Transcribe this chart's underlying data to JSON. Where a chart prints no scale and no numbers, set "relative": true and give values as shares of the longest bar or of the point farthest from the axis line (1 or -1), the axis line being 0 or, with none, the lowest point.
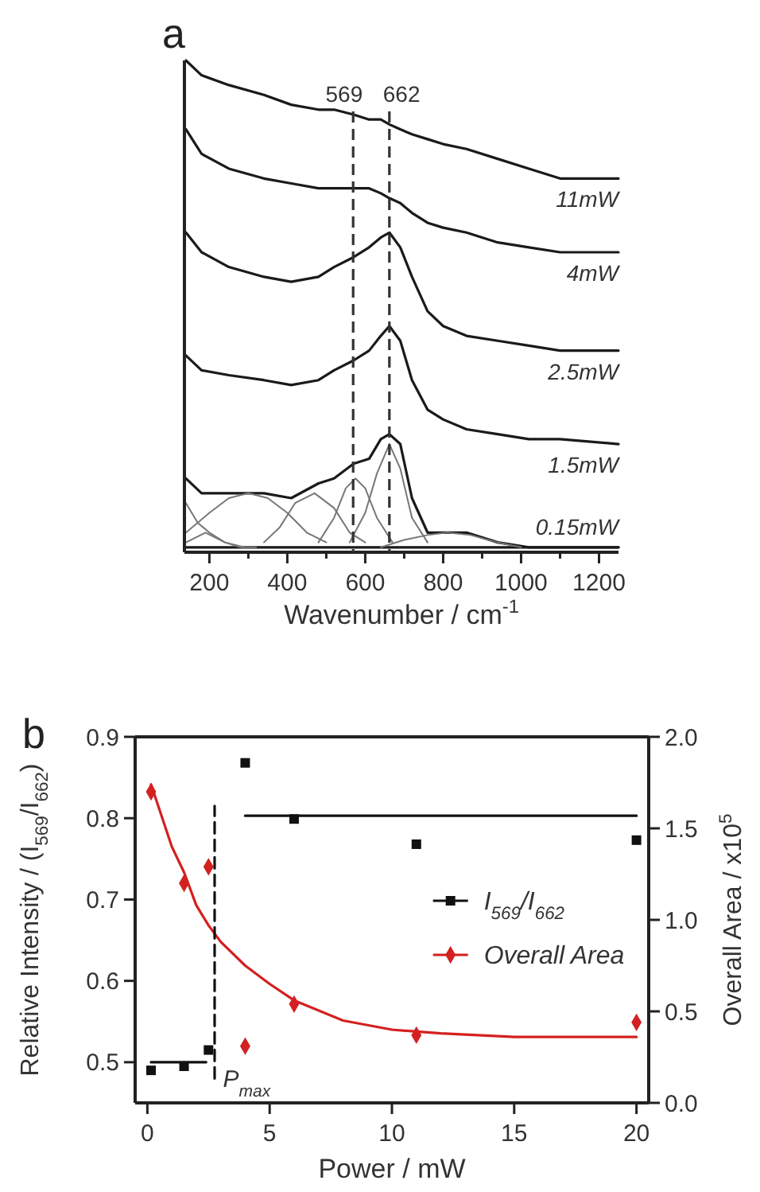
{
  "chart_data": [
    {
      "type": "line",
      "title": "a",
      "xlabel": "Wavenumber / cm$^{-1}$",
      "relative": true,
      "xlim": [
        136,
        1250
      ],
      "xticks": [
        200,
        {
          "value": 300,
          "label": null
        },
        400,
        {
          "value": 500,
          "label": null
        },
        600,
        {
          "value": 700,
          "label": null
        },
        800,
        {
          "value": 900,
          "label": null
        },
        1000,
        {
          "value": 1100,
          "label": null
        },
        1200
      ],
      "x": [
        140,
        180,
        250,
        340,
        410,
        480,
        520,
        570,
        610,
        640,
        662,
        690,
        720,
        760,
        800,
        860,
        940,
        1020,
        1100,
        1250
      ],
      "ref_lines": [
        {
          "axis": "x",
          "value": 569,
          "label": "569",
          "line_style": "dashed",
          "color": "#333333"
        },
        {
          "axis": "x",
          "value": 662,
          "label": "662",
          "line_style": "dashed",
          "color": "#333333"
        }
      ],
      "series": [
        {
          "name": "11mW",
          "color": "#1a1a1a",
          "values": [
            1.0,
            0.97,
            0.95,
            0.93,
            0.91,
            0.9,
            0.9,
            0.89,
            0.88,
            0.88,
            0.87,
            0.86,
            0.85,
            0.84,
            0.83,
            0.82,
            0.8,
            0.78,
            0.76,
            0.76
          ]
        },
        {
          "name": "4mW",
          "color": "#1a1a1a",
          "values": [
            0.86,
            0.81,
            0.78,
            0.76,
            0.75,
            0.74,
            0.74,
            0.74,
            0.74,
            0.73,
            0.72,
            0.71,
            0.69,
            0.67,
            0.66,
            0.65,
            0.63,
            0.62,
            0.61,
            0.61
          ]
        },
        {
          "name": "2.5mW",
          "color": "#1a1a1a",
          "values": [
            0.65,
            0.61,
            0.58,
            0.56,
            0.55,
            0.56,
            0.58,
            0.6,
            0.62,
            0.64,
            0.65,
            0.62,
            0.56,
            0.49,
            0.46,
            0.44,
            0.43,
            0.42,
            0.41,
            0.41
          ]
        },
        {
          "name": "1.5mW",
          "color": "#1a1a1a",
          "values": [
            0.4,
            0.37,
            0.36,
            0.35,
            0.34,
            0.35,
            0.37,
            0.39,
            0.41,
            0.44,
            0.46,
            0.43,
            0.35,
            0.29,
            0.27,
            0.25,
            0.24,
            0.23,
            0.23,
            0.22
          ]
        },
        {
          "name": "0.15mW",
          "color": "#1a1a1a",
          "values": [
            0.15,
            0.12,
            0.12,
            0.12,
            0.11,
            0.14,
            0.15,
            0.18,
            0.19,
            0.23,
            0.24,
            0.22,
            0.11,
            0.04,
            0.04,
            0.04,
            0.02,
            0.01,
            0.01,
            0.01
          ]
        },
        {
          "color": "#1a1a1a",
          "x": [
            140,
            1250
          ],
          "values": [
            0.01,
            0.01
          ]
        },
        {
          "color": "#777777",
          "x": [
            140,
            200,
            250,
            300,
            350,
            400,
            450,
            500
          ],
          "values": [
            0.04,
            0.08,
            0.11,
            0.12,
            0.11,
            0.08,
            0.04,
            0.02
          ]
        },
        {
          "color": "#777777",
          "x": [
            340,
            380,
            420,
            470,
            520,
            560,
            600
          ],
          "values": [
            0.02,
            0.05,
            0.1,
            0.12,
            0.09,
            0.04,
            0.02
          ]
        },
        {
          "color": "#777777",
          "x": [
            480,
            520,
            550,
            575,
            600,
            630,
            670
          ],
          "values": [
            0.02,
            0.07,
            0.13,
            0.15,
            0.13,
            0.07,
            0.02
          ]
        },
        {
          "color": "#777777",
          "x": [
            560,
            600,
            630,
            662,
            690,
            720,
            760
          ],
          "values": [
            0.02,
            0.08,
            0.16,
            0.22,
            0.17,
            0.07,
            0.02
          ]
        },
        {
          "color": "#777777",
          "x": [
            640,
            700,
            760,
            810,
            870,
            940,
            1000
          ],
          "values": [
            0.01,
            0.025,
            0.035,
            0.04,
            0.035,
            0.02,
            0.01
          ]
        },
        {
          "color": "#777777",
          "x": [
            140,
            170,
            200,
            240,
            280,
            320
          ],
          "values": [
            0.1,
            0.06,
            0.04,
            0.02,
            0.01,
            0.01
          ]
        },
        {
          "color": "#777777",
          "x": [
            140,
            190,
            240,
            290
          ],
          "values": [
            0.02,
            0.04,
            0.02,
            0.01
          ]
        }
      ]
    },
    {
      "type": "scatter",
      "title": "b",
      "xlabel": "Power / mW",
      "ylabel": "Relative Intensity / (I$_{569}$/I$_{662}$)",
      "y2label": "Overall Area / x10$^{5}$",
      "xlim": [
        -0.5,
        20.5
      ],
      "xticks": [
        0,
        5,
        10,
        15,
        20
      ],
      "ylim": [
        0.45,
        0.9
      ],
      "yticks": [
        0.5,
        0.6,
        0.7,
        0.8,
        0.9
      ],
      "y2lim": [
        0,
        2.0
      ],
      "y2ticks": [
        {
          "value": 0,
          "label": "0.0"
        },
        {
          "value": 0.5,
          "label": "0.5"
        },
        {
          "value": 1,
          "label": "1.0"
        },
        {
          "value": 1.5,
          "label": "1.5"
        },
        {
          "value": 2,
          "label": "2.0"
        }
      ],
      "legend": "right",
      "annotations": [
        {
          "text": "P$_{max}$",
          "x": 2.9,
          "y": 0.48
        }
      ],
      "series": [
        {
          "name": "I$_{569}$/I$_{662}$",
          "color": "#111111",
          "marker": "square",
          "x": [
            0.15,
            1.5,
            2.5,
            4,
            6,
            11,
            20
          ],
          "values": [
            0.49,
            0.495,
            0.515,
            0.868,
            0.799,
            0.768,
            0.773
          ]
        },
        {
          "name": "Overall Area",
          "color": "#d42020",
          "marker": "diamond",
          "axis": "y2",
          "x": [
            0.15,
            1.5,
            2.5,
            4,
            6,
            11,
            20
          ],
          "values": [
            1.7,
            1.2,
            1.29,
            0.31,
            0.54,
            0.37,
            0.44
          ]
        },
        {
          "type": "line",
          "color": "#d42020",
          "axis": "y2",
          "line_style": "solid",
          "x": [
            0.15,
            1,
            1.5,
            2,
            2.5,
            3,
            4,
            5,
            6,
            8,
            10,
            12,
            15,
            20
          ],
          "values": [
            1.74,
            1.4,
            1.26,
            1.08,
            0.97,
            0.88,
            0.75,
            0.65,
            0.56,
            0.45,
            0.4,
            0.38,
            0.36,
            0.36
          ]
        },
        {
          "type": "line",
          "color": "#111111",
          "line_style": "solid",
          "x": [
            0.15,
            2.4
          ],
          "values": [
            0.5,
            0.5
          ]
        },
        {
          "type": "line",
          "color": "#111111",
          "line_style": "solid",
          "x": [
            4,
            20
          ],
          "values": [
            0.803,
            0.803
          ]
        },
        {
          "type": "line",
          "color": "#111111",
          "line_style": "dashed",
          "x": [
            2.75,
            2.75
          ],
          "values": [
            0.48,
            0.815
          ]
        }
      ]
    }
  ]
}
